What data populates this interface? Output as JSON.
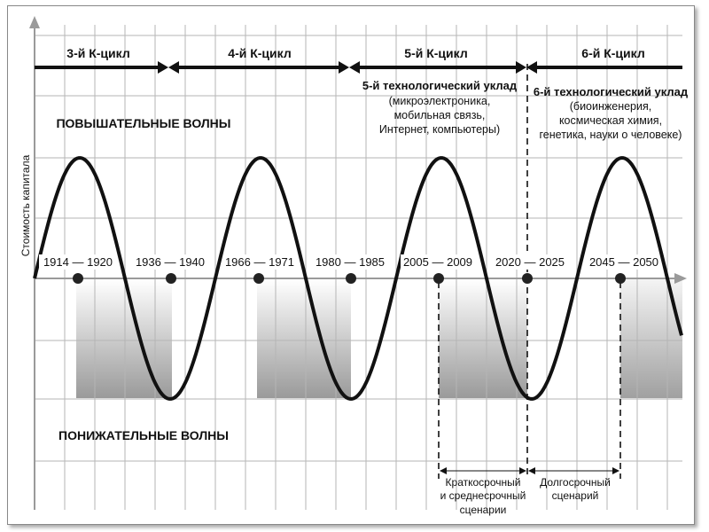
{
  "y_axis_label": "Стоимость капитала",
  "cycles": [
    "3-й К-цикл",
    "4-й К-цикл",
    "5-й К-цикл",
    "6-й К-цикл"
  ],
  "waves": {
    "up": "ПОВЫШАТЕЛЬНЫЕ ВОЛНЫ",
    "down": "ПОНИЖАТЕЛЬНЫЕ ВОЛНЫ"
  },
  "tech5": {
    "title": "5-й технологический уклад",
    "lines": [
      "(микроэлектроника,",
      "мобильная связь,",
      "Интернет, компьютеры)"
    ]
  },
  "tech6": {
    "title": "6-й технологический уклад",
    "lines": [
      "(биоинженерия,",
      "космическая химия,",
      "генетика, науки о человеке)"
    ]
  },
  "periods": [
    "1914 — 1920",
    "1936 — 1940",
    "1966 — 1971",
    "1980 — 1985",
    "2005 — 2009",
    "2020 — 2025",
    "2045 — 2050"
  ],
  "scenarios": {
    "short": [
      "Краткосрочный",
      "и среднесрочный",
      "сценарии"
    ],
    "long": [
      "Долгосрочный",
      "сценарий"
    ]
  }
}
